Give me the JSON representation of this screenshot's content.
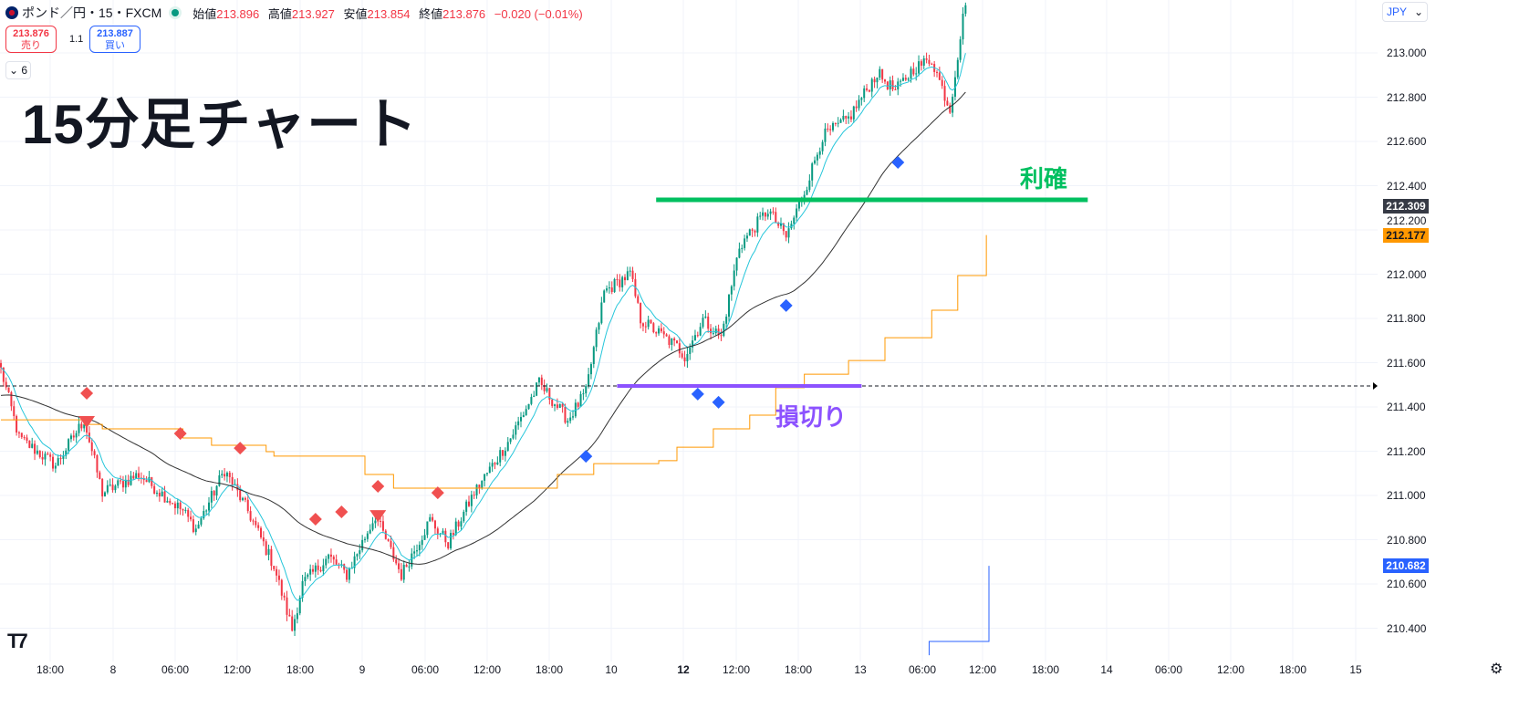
{
  "header": {
    "symbol": "ポンド／円・15・FXCM",
    "ohlc": [
      {
        "label": "始値",
        "value": "213.896"
      },
      {
        "label": "高値",
        "value": "213.927"
      },
      {
        "label": "安値",
        "value": "213.854"
      },
      {
        "label": "終値",
        "value": "213.876"
      }
    ],
    "change": "−0.020 (−0.01%)"
  },
  "trade": {
    "sell_price": "213.876",
    "sell_label": "売り",
    "spread": "1.1",
    "buy_price": "213.887",
    "buy_label": "買い"
  },
  "indicators_toggle": "6",
  "title": "15分足チャート",
  "annotations": {
    "take_profit": "利確",
    "stop_loss": "損切り"
  },
  "currency": "JPY",
  "price_axis": [
    "213.000",
    "212.800",
    "212.600",
    "212.400",
    "212.200",
    "212.000",
    "211.800",
    "211.600",
    "211.400",
    "211.200",
    "211.000",
    "210.800",
    "210.600",
    "210.400"
  ],
  "price_tags": [
    {
      "value": "212.309",
      "color": "#363a45",
      "text": "#ffffff"
    },
    {
      "value": "212.177",
      "color": "#ff9800",
      "text": "#131722"
    },
    {
      "value": "210.682",
      "color": "#2962ff",
      "text": "#ffffff"
    }
  ],
  "time_axis": [
    "18:00",
    "8",
    "06:00",
    "12:00",
    "18:00",
    "9",
    "06:00",
    "12:00",
    "18:00",
    "10",
    "12",
    "12:00",
    "18:00",
    "13",
    "06:00",
    "12:00",
    "18:00",
    "14",
    "06:00",
    "12:00",
    "18:00",
    "15"
  ],
  "colors": {
    "up": "#089981",
    "down": "#f23645",
    "sma": "#333333",
    "ema": "#26c6da",
    "step": "#ff9800",
    "blue": "#2962ff",
    "tp": "#00c060",
    "sl": "#8c52ff"
  },
  "chart_data": {
    "type": "candlestick",
    "price_path": [
      [
        0,
        211.569
      ],
      [
        7,
        211.26
      ],
      [
        21,
        211.136
      ],
      [
        32,
        211.342
      ],
      [
        39,
        211.012
      ],
      [
        53,
        211.095
      ],
      [
        70,
        210.93
      ],
      [
        75,
        210.847
      ],
      [
        86,
        211.115
      ],
      [
        95,
        210.93
      ],
      [
        105,
        210.682
      ],
      [
        112,
        210.394
      ],
      [
        116,
        210.6
      ],
      [
        126,
        210.724
      ],
      [
        133,
        210.641
      ],
      [
        144,
        210.909
      ],
      [
        154,
        210.641
      ],
      [
        165,
        210.889
      ],
      [
        172,
        210.785
      ],
      [
        182,
        211.012
      ],
      [
        196,
        211.26
      ],
      [
        207,
        211.507
      ],
      [
        218,
        211.342
      ],
      [
        225,
        211.466
      ],
      [
        232,
        211.92
      ],
      [
        242,
        212.002
      ],
      [
        246,
        211.796
      ],
      [
        260,
        211.672
      ],
      [
        263,
        211.631
      ],
      [
        270,
        211.796
      ],
      [
        277,
        211.713
      ],
      [
        284,
        212.126
      ],
      [
        295,
        212.291
      ],
      [
        302,
        212.167
      ],
      [
        309,
        212.373
      ],
      [
        316,
        212.621
      ],
      [
        326,
        212.703
      ],
      [
        337,
        212.909
      ],
      [
        344,
        212.827
      ],
      [
        351,
        212.93
      ],
      [
        358,
        212.971
      ],
      [
        365,
        212.744
      ],
      [
        368,
        212.992
      ],
      [
        371,
        213.239
      ]
    ],
    "step_line": [
      [
        0,
        211.342
      ],
      [
        32,
        211.321
      ],
      [
        39,
        211.301
      ],
      [
        70,
        211.26
      ],
      [
        81,
        211.227
      ],
      [
        102,
        211.198
      ],
      [
        105,
        211.178
      ],
      [
        140,
        211.095
      ],
      [
        151,
        211.033
      ],
      [
        200,
        211.033
      ],
      [
        214,
        211.095
      ],
      [
        228,
        211.144
      ],
      [
        253,
        211.157
      ],
      [
        260,
        211.218
      ],
      [
        274,
        211.301
      ],
      [
        288,
        211.363
      ],
      [
        298,
        211.487
      ],
      [
        309,
        211.548
      ],
      [
        326,
        211.61
      ],
      [
        340,
        211.713
      ],
      [
        358,
        211.837
      ],
      [
        368,
        211.994
      ],
      [
        379,
        212.177
      ]
    ],
    "blue_line": [
      [
        357,
        210.278
      ],
      [
        357,
        210.34
      ],
      [
        380,
        210.34
      ],
      [
        380,
        210.682
      ]
    ],
    "sell_markers": [
      [
        33,
        211.462
      ],
      [
        69,
        211.28
      ],
      [
        92,
        211.214
      ],
      [
        121,
        210.893
      ],
      [
        131,
        210.926
      ],
      [
        145,
        211.041
      ],
      [
        168,
        211.012
      ]
    ],
    "sell_triangles": [
      [
        33,
        211.334
      ],
      [
        145,
        210.909
      ]
    ],
    "buy_markers": [
      [
        225,
        211.177
      ],
      [
        268,
        211.458
      ],
      [
        276,
        211.421
      ],
      [
        302,
        211.858
      ],
      [
        345,
        212.505
      ]
    ],
    "take_profit": {
      "price": 212.336,
      "from": 252,
      "to": 418
    },
    "stop_loss": {
      "price": 211.495,
      "from": 237,
      "to": 331
    },
    "dashed_level": 211.495,
    "ylim": [
      210.3,
      213.3
    ]
  }
}
